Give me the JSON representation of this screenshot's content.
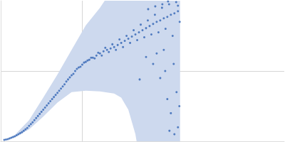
{
  "chart_data": {
    "type": "scatter",
    "color": "#3264b4",
    "marker": "circle",
    "x": [
      0.005,
      0.01,
      0.015,
      0.02,
      0.025,
      0.03,
      0.035,
      0.04,
      0.045,
      0.05,
      0.055,
      0.06,
      0.065,
      0.07,
      0.075,
      0.08,
      0.085,
      0.09,
      0.095,
      0.1,
      0.105,
      0.11,
      0.115,
      0.12,
      0.125,
      0.13,
      0.135,
      0.14,
      0.145,
      0.15,
      0.155,
      0.16,
      0.165,
      0.17,
      0.175,
      0.18,
      0.185,
      0.19,
      0.195,
      0.2,
      0.205,
      0.21,
      0.215,
      0.22,
      0.225,
      0.23,
      0.235,
      0.24,
      0.245,
      0.25,
      0.0075,
      0.0125,
      0.0175,
      0.0225,
      0.0275,
      0.0325,
      0.0375,
      0.0425,
      0.0475,
      0.0525,
      0.0575,
      0.0625,
      0.0675,
      0.0725,
      0.0775,
      0.0825,
      0.0875,
      0.0925,
      0.0975,
      0.1025,
      0.1075,
      0.1125,
      0.1175,
      0.1225,
      0.1275,
      0.1325,
      0.1375,
      0.1425,
      0.1475,
      0.1525,
      0.1575,
      0.1625,
      0.1675,
      0.1725,
      0.1775,
      0.1825,
      0.1875,
      0.1925,
      0.1975,
      0.2025,
      0.2075,
      0.2125,
      0.2175,
      0.2225,
      0.2275,
      0.2325,
      0.2375,
      0.2425,
      0.2475,
      0.2525,
      0.196,
      0.205,
      0.215,
      0.225,
      0.23,
      0.235,
      0.24,
      0.245,
      0.25,
      0.238,
      0.252,
      0.248,
      0.232,
      0.22,
      0.244,
      0.228,
      0.218,
      0.208,
      0.236,
      0.25
    ],
    "values": [
      0.02,
      0.03,
      0.05,
      0.07,
      0.1,
      0.13,
      0.17,
      0.22,
      0.27,
      0.33,
      0.39,
      0.45,
      0.51,
      0.57,
      0.63,
      0.69,
      0.75,
      0.81,
      0.88,
      0.94,
      1.0,
      1.05,
      1.09,
      1.13,
      1.16,
      1.19,
      1.22,
      1.25,
      1.28,
      1.3,
      1.32,
      1.34,
      1.37,
      1.4,
      1.43,
      1.46,
      1.49,
      1.52,
      1.55,
      1.58,
      1.61,
      1.64,
      1.67,
      1.7,
      1.72,
      1.75,
      1.77,
      1.8,
      1.82,
      1.85,
      0.025,
      0.04,
      0.06,
      0.085,
      0.115,
      0.15,
      0.19,
      0.245,
      0.3,
      0.36,
      0.42,
      0.48,
      0.54,
      0.6,
      0.66,
      0.72,
      0.78,
      0.85,
      0.91,
      0.96,
      1.03,
      1.06,
      1.12,
      1.15,
      1.19,
      1.18,
      1.26,
      1.22,
      1.33,
      1.27,
      1.38,
      1.3,
      1.45,
      1.34,
      1.5,
      1.4,
      1.58,
      1.44,
      1.66,
      1.48,
      1.72,
      1.52,
      1.8,
      1.55,
      1.9,
      1.6,
      1.95,
      1.5,
      1.98,
      1.7,
      0.88,
      1.2,
      1.1,
      0.9,
      1.3,
      0.6,
      0.4,
      0.1,
      0.2,
      0.15,
      0.5,
      0.7,
      1.0,
      1.25,
      1.1,
      1.95,
      1.92,
      1.88,
      1.99,
      1.93
    ],
    "band": {
      "color": "#cdd9ee",
      "x": [
        0.005,
        0.02,
        0.04,
        0.06,
        0.08,
        0.1,
        0.12,
        0.14,
        0.16,
        0.17,
        0.18,
        0.19,
        0.2,
        0.22,
        0.24,
        0.253
      ],
      "lower": [
        0.02,
        0.06,
        0.17,
        0.35,
        0.55,
        0.7,
        0.72,
        0.71,
        0.68,
        0.62,
        0.45,
        0.1,
        -0.5,
        -1,
        -1,
        -1
      ],
      "upper": [
        0.02,
        0.09,
        0.3,
        0.62,
        0.95,
        1.3,
        1.65,
        1.9,
        2.2,
        2.4,
        2.5,
        2.6,
        2.6,
        2.7,
        2.8,
        2.8
      ]
    },
    "xlim": [
      0,
      0.4
    ],
    "xticks": [
      0.115
    ],
    "ylim": [
      0,
      2
    ],
    "yticks": [
      1
    ],
    "grid": true,
    "tick_labels": false
  }
}
